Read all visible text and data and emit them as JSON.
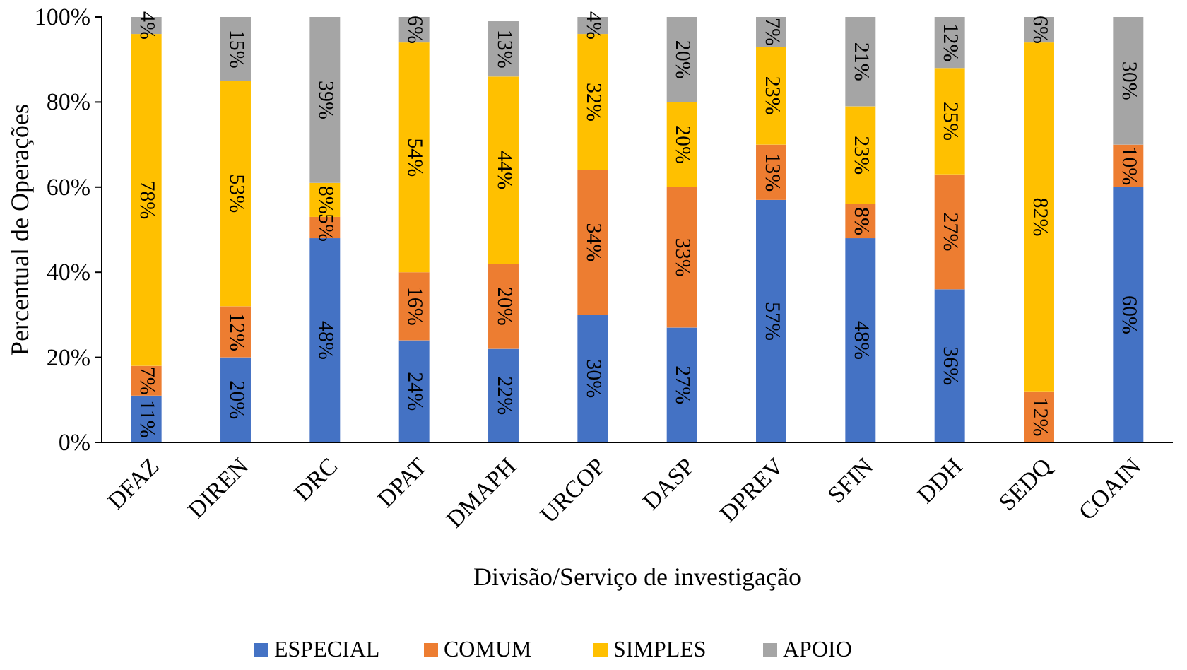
{
  "chart_data": {
    "type": "bar",
    "stacked": true,
    "xlabel": "Divisão/Serviço de investigação",
    "ylabel": "Percentual de Operações",
    "categories": [
      "DFAZ",
      "DIREN",
      "DRC",
      "DPAT",
      "DMAPH",
      "URCOP",
      "DASP",
      "DPREV",
      "SFIN",
      "DDH",
      "SEDQ",
      "COAIN"
    ],
    "series": [
      {
        "name": "ESPECIAL",
        "color": "#4472c4",
        "values": [
          11,
          20,
          48,
          24,
          22,
          30,
          27,
          57,
          48,
          36,
          0,
          60
        ],
        "value_labels": [
          "11%",
          "20%",
          "48%",
          "24%",
          "22%",
          "30%",
          "27%",
          "57%",
          "48%",
          "36%",
          null,
          "60%"
        ]
      },
      {
        "name": "COMUM",
        "color": "#ed7d31",
        "values": [
          7,
          12,
          5,
          16,
          20,
          34,
          33,
          13,
          8,
          27,
          12,
          10
        ],
        "value_labels": [
          "7%",
          "12%",
          "5%",
          "16%",
          "20%",
          "34%",
          "33%",
          "13%",
          "8%",
          "27%",
          "12%",
          "10%"
        ]
      },
      {
        "name": "SIMPLES",
        "color": "#ffc000",
        "values": [
          78,
          53,
          8,
          54,
          44,
          32,
          20,
          23,
          23,
          25,
          82,
          0
        ],
        "value_labels": [
          "78%",
          "53%",
          "8%",
          "54%",
          "44%",
          "32%",
          "20%",
          "23%",
          "23%",
          "25%",
          "82%",
          null
        ]
      },
      {
        "name": "APOIO",
        "color": "#a5a5a5",
        "values": [
          4,
          15,
          39,
          6,
          13,
          4,
          20,
          7,
          21,
          12,
          6,
          30
        ],
        "value_labels": [
          "4%",
          "15%",
          "39%",
          "6%",
          "13%",
          "4%",
          "20%",
          "7%",
          "21%",
          "12%",
          "6%",
          "30%"
        ]
      }
    ],
    "ylim": [
      0,
      100
    ],
    "yticks": [
      {
        "value": 0,
        "label": "0%"
      },
      {
        "value": 20,
        "label": "20%"
      },
      {
        "value": 40,
        "label": "40%"
      },
      {
        "value": 60,
        "label": "60%"
      },
      {
        "value": 80,
        "label": "80%"
      },
      {
        "value": 100,
        "label": "100%"
      }
    ],
    "grid": false,
    "legend": "bottom"
  }
}
